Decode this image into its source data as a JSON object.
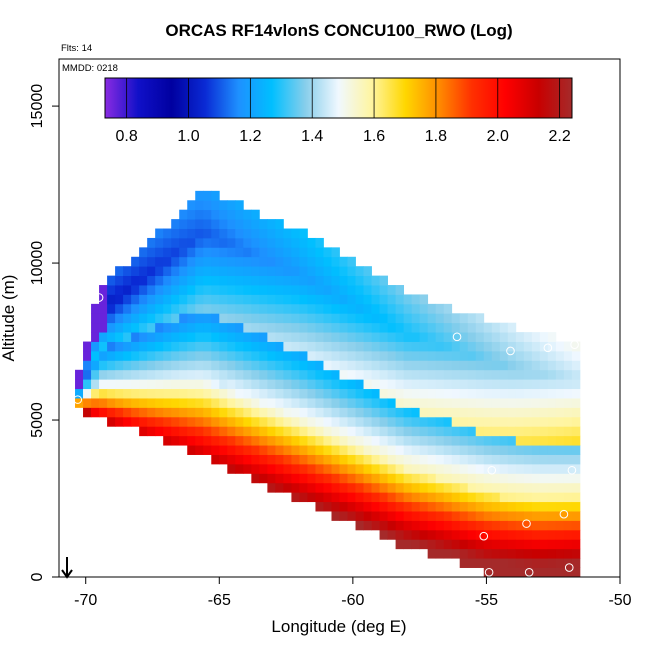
{
  "chart_data": {
    "type": "heatmap",
    "title": "ORCAS RF14vlonS CONCU100_RWO (Log)",
    "xlabel": "Longitude (deg E)",
    "ylabel": "Altitude (m)",
    "xlim": [
      -71,
      -50
    ],
    "ylim": [
      0,
      16500
    ],
    "xticks": [
      "-70",
      "-65",
      "-60",
      "-55",
      "-50"
    ],
    "xtick_values": [
      -70,
      -65,
      -60,
      -55,
      -50
    ],
    "yticks": [
      "0",
      "5000",
      "10000",
      "15000"
    ],
    "ytick_values": [
      0,
      5000,
      10000,
      15000
    ],
    "annotations": {
      "flights": "Flts: 14",
      "date": "MMDD: 0218"
    },
    "colorbar": {
      "range": [
        0.73,
        2.24
      ],
      "ticks": [
        "0.8",
        "1.0",
        "1.2",
        "1.4",
        "1.6",
        "1.8",
        "2.0",
        "2.2"
      ],
      "tick_values": [
        0.8,
        1.0,
        1.2,
        1.4,
        1.6,
        1.8,
        2.0,
        2.2
      ],
      "colors": [
        "#8a2be2",
        "#1010c8",
        "#0000a0",
        "#0a2ad4",
        "#1e90ff",
        "#00bfff",
        "#87ceeb",
        "#f0f8ff",
        "#fff5a0",
        "#ffd700",
        "#ff8c00",
        "#ff3000",
        "#ff0000",
        "#c80000",
        "#a52a2a"
      ]
    },
    "domain": {
      "top_edge": [
        [
          -70.4,
          5800
        ],
        [
          -69.5,
          9000
        ],
        [
          -65.6,
          12200
        ],
        [
          -62.0,
          10900
        ],
        [
          -58.0,
          8900
        ],
        [
          -54.0,
          7800
        ],
        [
          -51.7,
          7400
        ]
      ],
      "bottom_edge": [
        [
          -70.4,
          5500
        ],
        [
          -66.5,
          4300
        ],
        [
          -62.0,
          2600
        ],
        [
          -58.0,
          1100
        ],
        [
          -55.0,
          300
        ],
        [
          -53.0,
          50
        ],
        [
          -51.7,
          50
        ]
      ]
    },
    "flight_points": [
      {
        "x": -69.5,
        "y": 8900
      },
      {
        "x": -70.3,
        "y": 5650
      },
      {
        "x": -56.1,
        "y": 7650
      },
      {
        "x": -54.1,
        "y": 7200
      },
      {
        "x": -52.7,
        "y": 7300
      },
      {
        "x": -51.7,
        "y": 7400
      },
      {
        "x": -54.8,
        "y": 3400
      },
      {
        "x": -51.8,
        "y": 3400
      },
      {
        "x": -53.5,
        "y": 1700
      },
      {
        "x": -52.1,
        "y": 2000
      },
      {
        "x": -55.1,
        "y": 1300
      },
      {
        "x": -54.9,
        "y": 150
      },
      {
        "x": -53.4,
        "y": 150
      },
      {
        "x": -51.9,
        "y": 300
      }
    ],
    "marker": {
      "x": -70.7,
      "y": 0,
      "type": "arrow-down"
    }
  }
}
